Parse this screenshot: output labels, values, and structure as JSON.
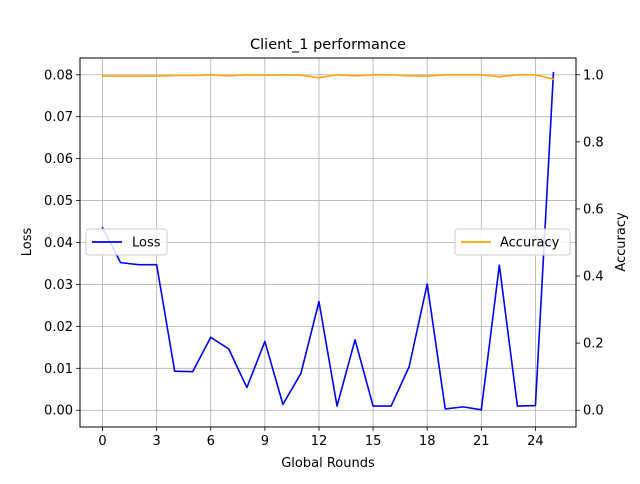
{
  "chart_data": {
    "type": "line",
    "title": "Client_1 performance",
    "xlabel": "Global Rounds",
    "ylabel_left": "Loss",
    "ylabel_right": "Accuracy",
    "x": [
      0,
      1,
      2,
      3,
      4,
      5,
      6,
      7,
      8,
      9,
      10,
      11,
      12,
      13,
      14,
      15,
      16,
      17,
      18,
      19,
      20,
      21,
      22,
      23,
      24,
      25
    ],
    "xticks": [
      0,
      3,
      6,
      9,
      12,
      15,
      18,
      21,
      24
    ],
    "xlim": [
      -1.25,
      26.25
    ],
    "ylim_left": [
      -0.004,
      0.084
    ],
    "ylim_right": [
      -0.05,
      1.05
    ],
    "yticks_left": [
      "0.00",
      "0.01",
      "0.02",
      "0.03",
      "0.04",
      "0.05",
      "0.06",
      "0.07",
      "0.08"
    ],
    "yticks_right": [
      "0.0",
      "0.2",
      "0.4",
      "0.6",
      "0.8",
      "1.0"
    ],
    "grid": true,
    "series": [
      {
        "name": "Loss",
        "axis": "left",
        "color": "#0000ff",
        "legend_position": "center-left",
        "values": [
          0.0435,
          0.0352,
          0.0347,
          0.0347,
          0.0093,
          0.0092,
          0.0174,
          0.0146,
          0.0054,
          0.0164,
          0.0014,
          0.0088,
          0.0259,
          0.001,
          0.0168,
          0.001,
          0.001,
          0.0104,
          0.0301,
          0.0003,
          0.0008,
          0.0001,
          0.0346,
          0.001,
          0.0011,
          0.0805
        ]
      },
      {
        "name": "Accuracy",
        "axis": "right",
        "color": "#ffa500",
        "legend_position": "center-right",
        "values": [
          0.996,
          0.996,
          0.996,
          0.996,
          0.998,
          0.998,
          1.0,
          0.997,
          1.0,
          0.999,
          1.0,
          0.999,
          0.991,
          1.0,
          0.997,
          1.0,
          1.0,
          0.997,
          0.996,
          1.0,
          1.0,
          1.0,
          0.994,
          1.0,
          1.0,
          0.987
        ]
      }
    ]
  }
}
